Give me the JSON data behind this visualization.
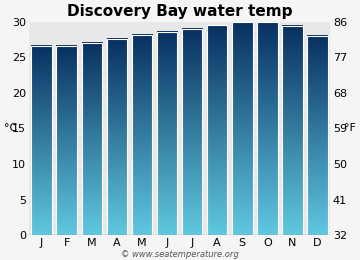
{
  "title": "Discovery Bay water temp",
  "months": [
    "J",
    "F",
    "M",
    "A",
    "M",
    "J",
    "J",
    "A",
    "S",
    "O",
    "N",
    "D"
  ],
  "values_c": [
    26.6,
    26.6,
    27.0,
    27.6,
    28.1,
    28.6,
    29.0,
    29.5,
    29.9,
    29.9,
    29.4,
    28.0
  ],
  "ylim_c": [
    0,
    30
  ],
  "yticks_c": [
    0,
    5,
    10,
    15,
    20,
    25,
    30
  ],
  "yticks_f": [
    32,
    41,
    50,
    59,
    68,
    77,
    86
  ],
  "ylabel_left": "°C",
  "ylabel_right": "°F",
  "bar_color_bottom": "#083060",
  "bar_color_top": "#60c8e0",
  "background_plot": "#e8e8e8",
  "background_fig": "#f5f5f5",
  "title_fontsize": 11,
  "axis_fontsize": 8,
  "tick_fontsize": 8,
  "watermark": "© www.seatemperature.org"
}
